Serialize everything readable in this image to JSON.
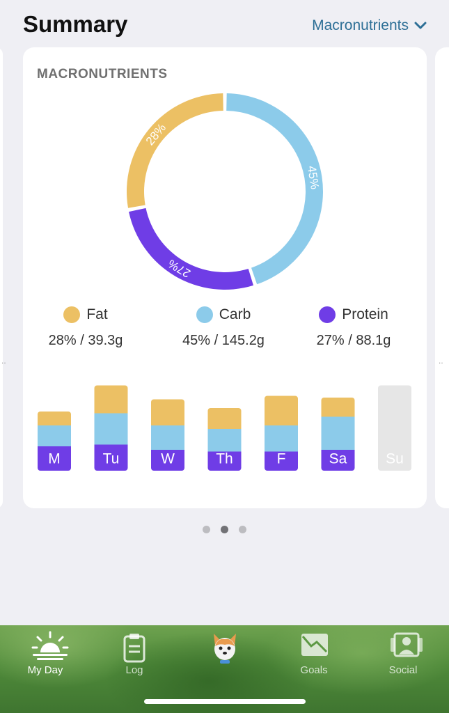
{
  "header": {
    "title": "Summary",
    "selector_label": "Macronutrients"
  },
  "card": {
    "heading": "MACRONUTRIENTS"
  },
  "colors": {
    "fat": "#ecc064",
    "carb": "#8ccbea",
    "protein": "#6f3de6",
    "empty": "#e6e6e6",
    "accent": "#2d6f96"
  },
  "chart_data": [
    {
      "type": "pie",
      "labels": [
        "Fat",
        "Carb",
        "Protein"
      ],
      "values": [
        28,
        45,
        27
      ],
      "value_labels": [
        "28%",
        "45%",
        "27%"
      ],
      "legend": [
        {
          "name": "Fat",
          "value": "28% / 39.3g"
        },
        {
          "name": "Carb",
          "value": "45% / 145.2g"
        },
        {
          "name": "Protein",
          "value": "27% / 88.1g"
        }
      ]
    },
    {
      "type": "bar",
      "categories": [
        "M",
        "Tu",
        "W",
        "Th",
        "F",
        "Sa",
        "Su"
      ],
      "series": [
        {
          "name": "Protein",
          "values": [
            28,
            30,
            24,
            22,
            22,
            24,
            0
          ]
        },
        {
          "name": "Carb",
          "values": [
            24,
            36,
            28,
            26,
            30,
            38,
            0
          ]
        },
        {
          "name": "Fat",
          "values": [
            16,
            32,
            30,
            24,
            34,
            22,
            0
          ]
        }
      ],
      "stacked": true,
      "no_data": [
        false,
        false,
        false,
        false,
        false,
        false,
        true
      ]
    }
  ],
  "pager": {
    "count": 3,
    "active": 1
  },
  "tabs": [
    {
      "label": "My Day",
      "icon": "sunrise-icon",
      "active": true
    },
    {
      "label": "Log",
      "icon": "clipboard-icon",
      "active": false
    },
    {
      "label": "",
      "icon": "dog-avatar-icon",
      "active": false
    },
    {
      "label": "Goals",
      "icon": "chart-envelope-icon",
      "active": false
    },
    {
      "label": "Social",
      "icon": "people-icon",
      "active": false
    }
  ]
}
